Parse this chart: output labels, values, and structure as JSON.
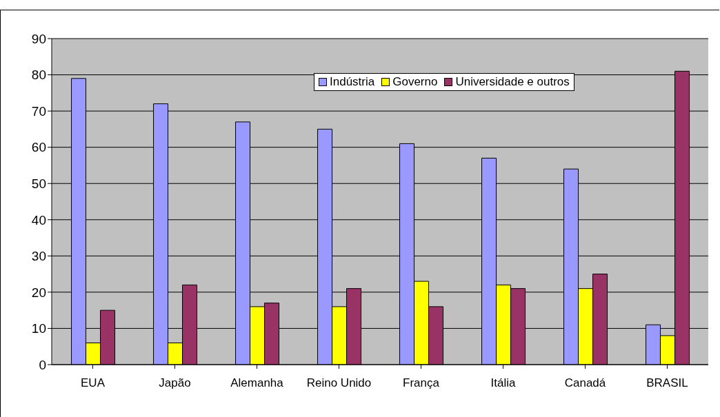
{
  "chart_data": {
    "type": "bar",
    "categories": [
      "EUA",
      "Japão",
      "Alemanha",
      "Reino Unido",
      "França",
      "Itália",
      "Canadá",
      "BRASIL"
    ],
    "series": [
      {
        "name": "Indústria",
        "color": "#9999ff",
        "values": [
          79,
          72,
          67,
          65,
          61,
          57,
          54,
          11
        ]
      },
      {
        "name": "Governo",
        "color": "#ffff00",
        "values": [
          6,
          6,
          16,
          16,
          23,
          22,
          21,
          8
        ]
      },
      {
        "name": "Universidade e outros",
        "color": "#993366",
        "values": [
          15,
          22,
          17,
          21,
          16,
          21,
          25,
          81
        ]
      }
    ],
    "ylim": [
      0,
      90
    ],
    "yticks": [
      0,
      10,
      20,
      30,
      40,
      50,
      60,
      70,
      80,
      90
    ],
    "grid": "y",
    "legend": "top right"
  }
}
